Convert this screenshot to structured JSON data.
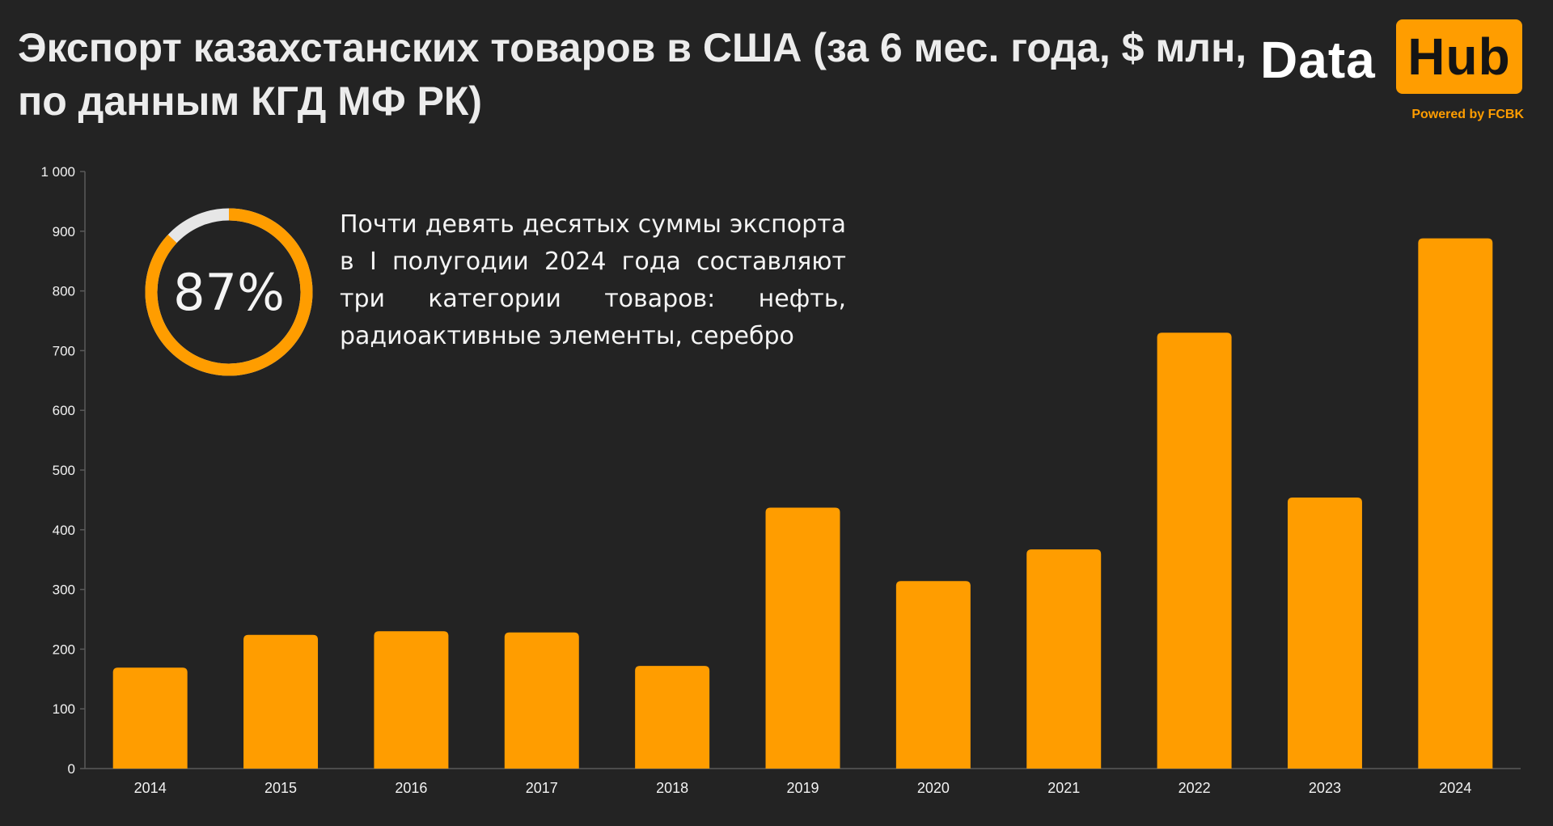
{
  "header": {
    "title_line1": "Экспорт казахстанских товаров в США (за 6 мес. года, $ млн,",
    "title_line2": "по данным КГД МФ РК)"
  },
  "logo": {
    "data_text": "Data",
    "hub_text": "Hub",
    "powered_text": "Powered by FCBK"
  },
  "callout": {
    "percent_value": 87,
    "percent_label": "87%",
    "text": "Почти девять десятых суммы экспорта в I полугодии 2024 года составляют три категории товаров: нефть, радиоактивные элементы, серебро"
  },
  "colors": {
    "background": "#232323",
    "bar": "#ff9d00",
    "text": "#f2f2f2",
    "ring_rest": "#e6e6e6"
  },
  "chart_data": {
    "type": "bar",
    "title": "Экспорт казахстанских товаров в США (за 6 мес. года, $ млн, по данным КГД МФ РК)",
    "xlabel": "",
    "ylabel": "",
    "categories": [
      "2014",
      "2015",
      "2016",
      "2017",
      "2018",
      "2019",
      "2020",
      "2021",
      "2022",
      "2023",
      "2024"
    ],
    "values": [
      169,
      224,
      230,
      228,
      172,
      437,
      314,
      367,
      730,
      454,
      888
    ],
    "ylim": [
      0,
      1000
    ],
    "yticks": [
      0,
      100,
      200,
      300,
      400,
      500,
      600,
      700,
      800,
      900,
      1000
    ],
    "ytick_labels": [
      "0",
      "100",
      "200",
      "300",
      "400",
      "500",
      "600",
      "700",
      "800",
      "900",
      "1 000"
    ],
    "grid": false,
    "legend": "none"
  }
}
